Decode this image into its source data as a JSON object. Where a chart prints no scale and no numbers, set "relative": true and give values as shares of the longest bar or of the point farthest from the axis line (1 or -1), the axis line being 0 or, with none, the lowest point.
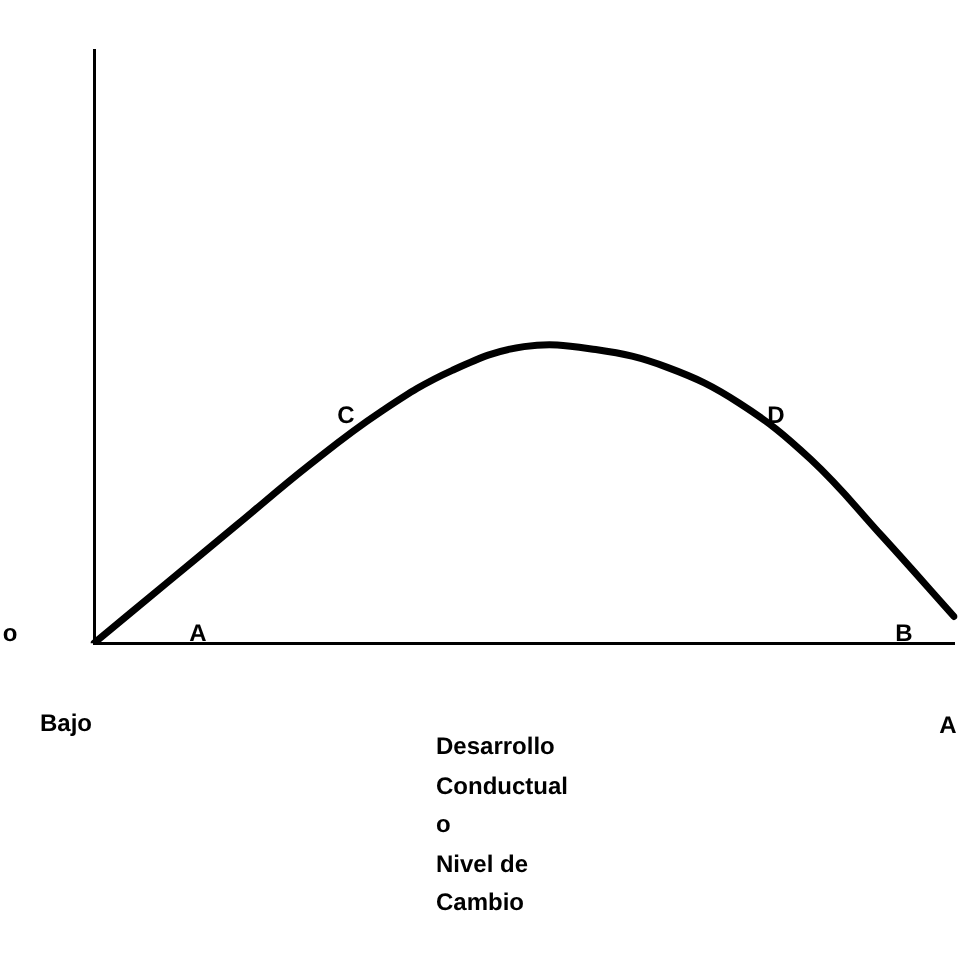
{
  "chart_data": {
    "type": "line",
    "relative": true,
    "xlabel": "Desarrollo\nConductual\no\nNivel de\nCambio",
    "categories": [
      null,
      null,
      null,
      null,
      null,
      null,
      null,
      null,
      null,
      null,
      null,
      null,
      null
    ],
    "series": [
      {
        "color": "#000000",
        "values": [
          0,
          0.2,
          0.4,
          0.6,
          0.78,
          0.92,
          1,
          0.99,
          0.93,
          0.81,
          0.62,
          0.36,
          0.09
        ]
      }
    ],
    "annotations": [
      "A",
      "C",
      "D",
      "B",
      "Bajo",
      "A",
      "o"
    ],
    "grid": false,
    "legend": false,
    "marker": "none",
    "line_style": "solid"
  }
}
